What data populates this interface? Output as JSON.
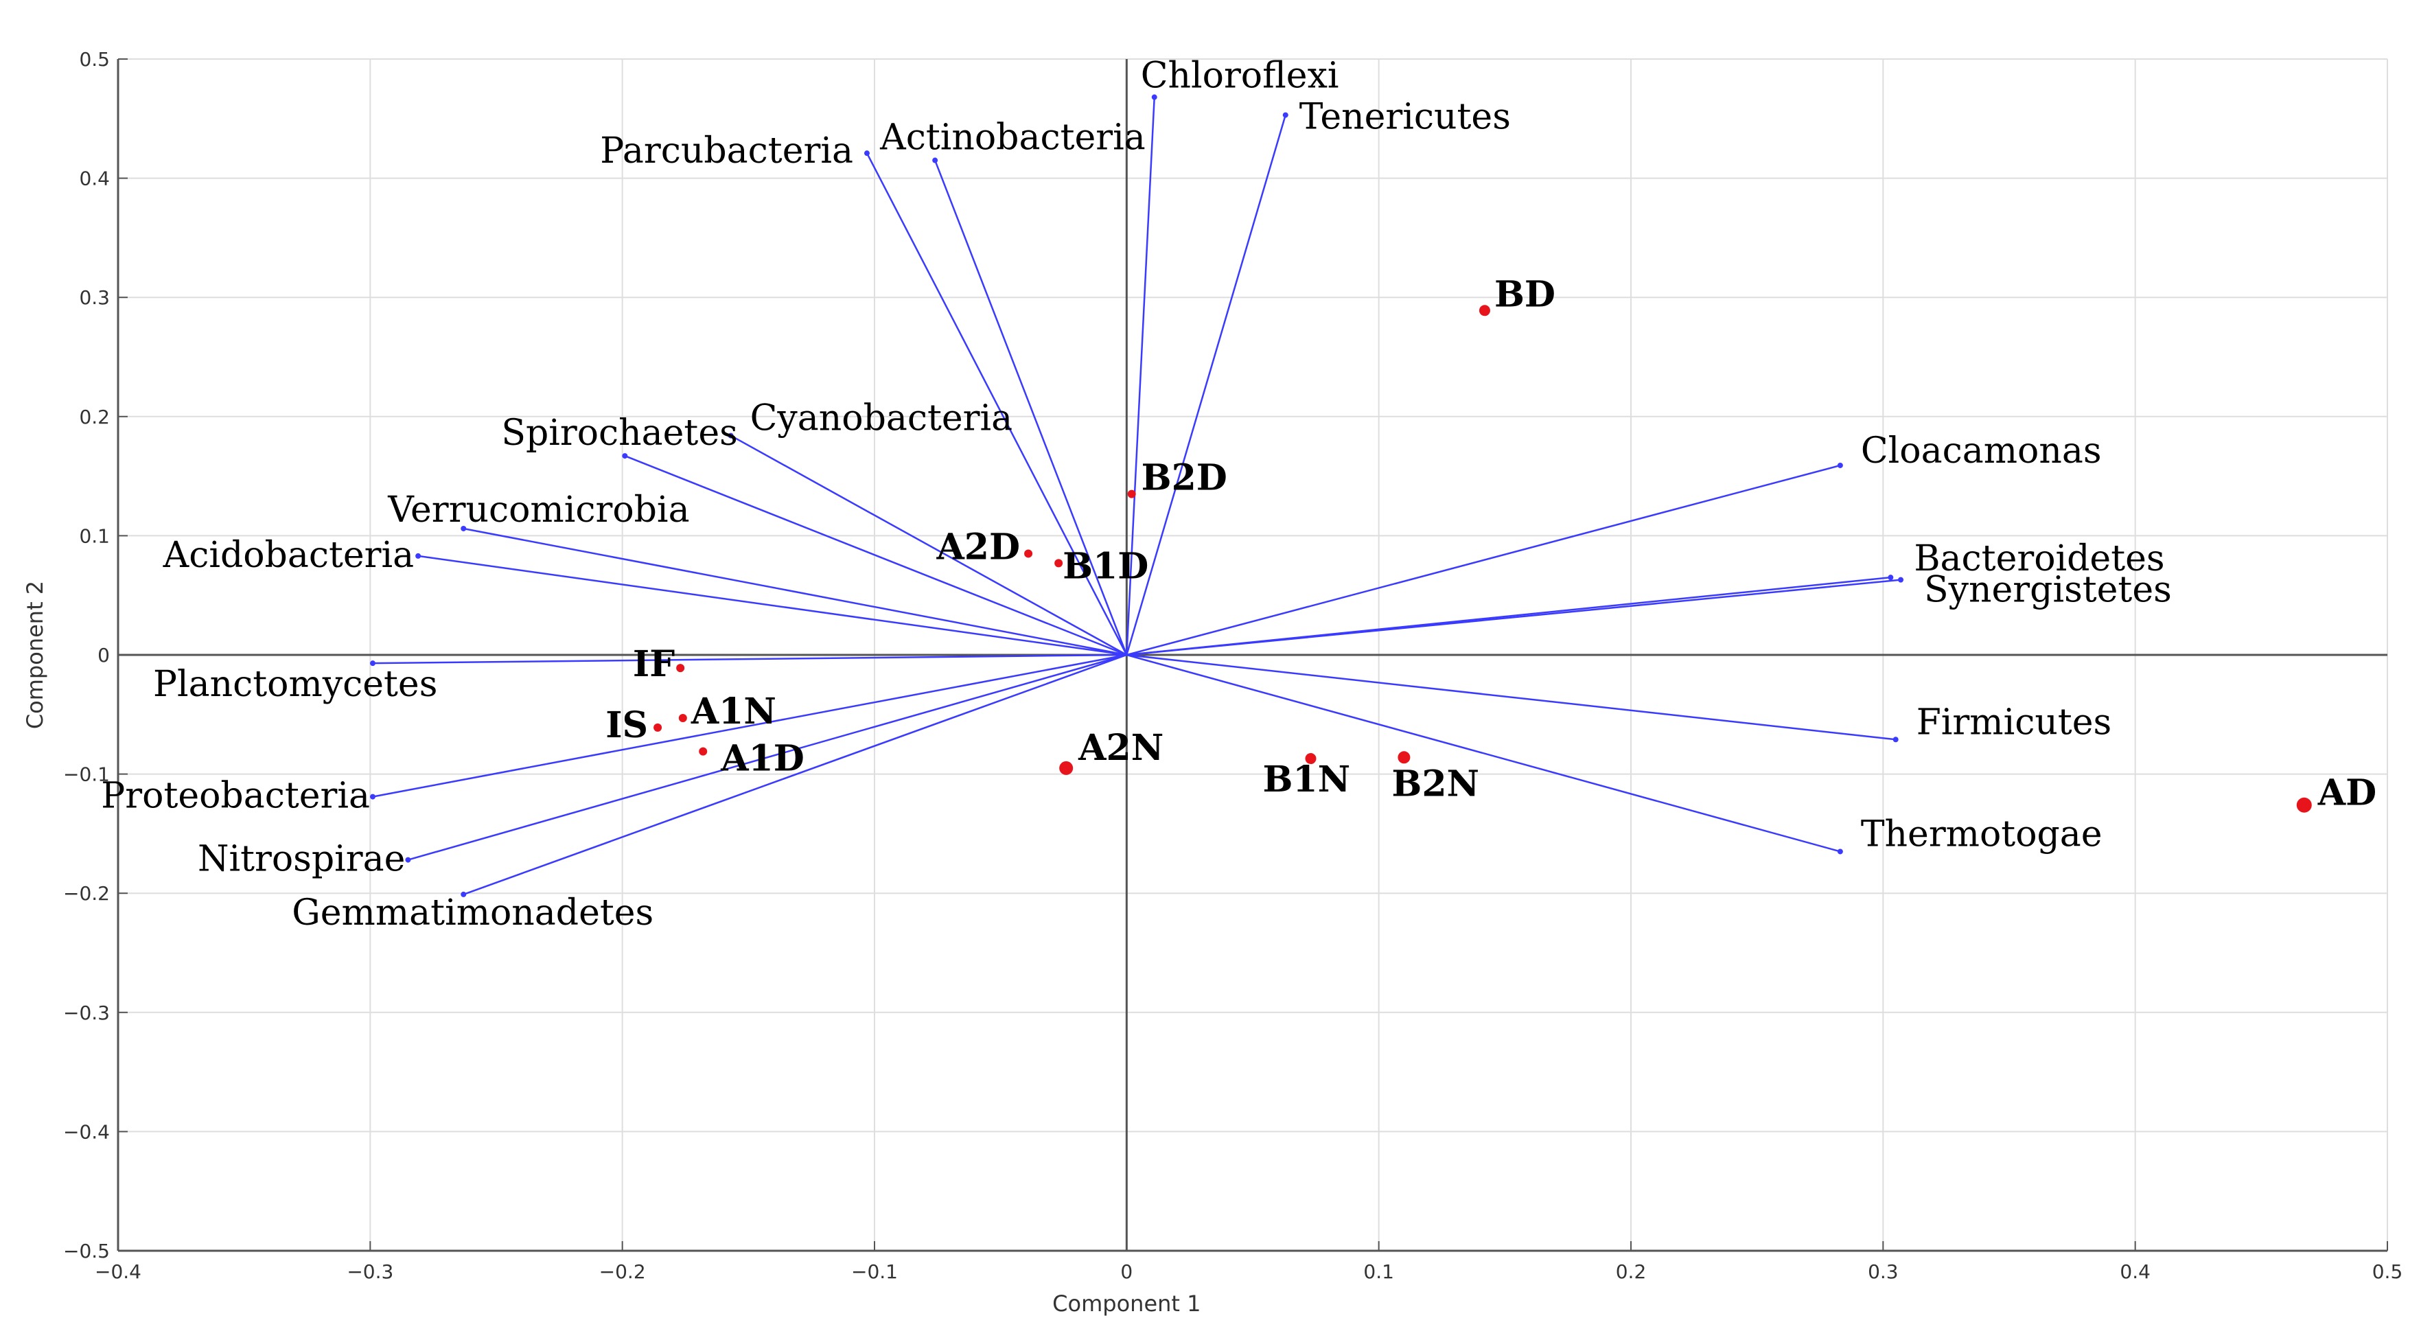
{
  "chart_data": {
    "type": "biplot",
    "xlabel": "Component 1",
    "ylabel": "Component 2",
    "xlim": [
      -0.4,
      0.5
    ],
    "ylim": [
      -0.5,
      0.5
    ],
    "xticks": [
      -0.4,
      -0.3,
      -0.2,
      -0.1,
      0,
      0.1,
      0.2,
      0.3,
      0.4,
      0.5
    ],
    "yticks": [
      -0.5,
      -0.4,
      -0.3,
      -0.2,
      -0.1,
      0,
      0.1,
      0.2,
      0.3,
      0.4,
      0.5
    ],
    "xtick_labels": [
      "−0.4",
      "−0.3",
      "−0.2",
      "−0.1",
      "0",
      "0.1",
      "0.2",
      "0.3",
      "0.4",
      "0.5"
    ],
    "ytick_labels": [
      "−0.5",
      "−0.4",
      "−0.3",
      "−0.2",
      "−0.1",
      "0",
      "0.1",
      "0.2",
      "0.3",
      "0.4",
      "0.5"
    ],
    "grid": true,
    "colors": {
      "vector": "#3b3bff",
      "sample": "#e8141c",
      "grid": "#dedede",
      "axis": "#555555"
    },
    "vectors": [
      {
        "name": "Chloroflexi",
        "x": 0.011,
        "y": 0.468
      },
      {
        "name": "Tenericutes",
        "x": 0.063,
        "y": 0.453
      },
      {
        "name": "Parcubacteria",
        "x": -0.103,
        "y": 0.421
      },
      {
        "name": "Actinobacteria",
        "x": -0.076,
        "y": 0.415
      },
      {
        "name": "Spirochaetes",
        "x": -0.199,
        "y": 0.167
      },
      {
        "name": "Cyanobacteria",
        "x": -0.157,
        "y": 0.184
      },
      {
        "name": "Verrucomicrobia",
        "x": -0.263,
        "y": 0.106
      },
      {
        "name": "Acidobacteria",
        "x": -0.281,
        "y": 0.083
      },
      {
        "name": "Planctomycetes",
        "x": -0.299,
        "y": -0.007
      },
      {
        "name": "Proteobacteria",
        "x": -0.299,
        "y": -0.119
      },
      {
        "name": "Nitrospirae",
        "x": -0.285,
        "y": -0.172
      },
      {
        "name": "Gemmatimonadetes",
        "x": -0.263,
        "y": -0.201
      },
      {
        "name": "Cloacamonas",
        "x": 0.283,
        "y": 0.159
      },
      {
        "name": "Bacteroidetes",
        "x": 0.303,
        "y": 0.065
      },
      {
        "name": "Synergistetes",
        "x": 0.307,
        "y": 0.063
      },
      {
        "name": "Firmicutes",
        "x": 0.305,
        "y": -0.071
      },
      {
        "name": "Thermotogae",
        "x": 0.283,
        "y": -0.165
      }
    ],
    "samples": [
      {
        "name": "BD",
        "x": 0.142,
        "y": 0.289
      },
      {
        "name": "B2D",
        "x": 0.002,
        "y": 0.135
      },
      {
        "name": "A2D",
        "x": -0.039,
        "y": 0.085
      },
      {
        "name": "B1D",
        "x": -0.027,
        "y": 0.077
      },
      {
        "name": "IF",
        "x": -0.177,
        "y": -0.011
      },
      {
        "name": "IS",
        "x": -0.186,
        "y": -0.061
      },
      {
        "name": "A1N",
        "x": -0.176,
        "y": -0.053
      },
      {
        "name": "A1D",
        "x": -0.168,
        "y": -0.081
      },
      {
        "name": "A2N",
        "x": -0.024,
        "y": -0.095
      },
      {
        "name": "B1N",
        "x": 0.073,
        "y": -0.087
      },
      {
        "name": "B2N",
        "x": 0.11,
        "y": -0.086
      },
      {
        "name": "AD",
        "x": 0.467,
        "y": -0.126
      }
    ]
  }
}
